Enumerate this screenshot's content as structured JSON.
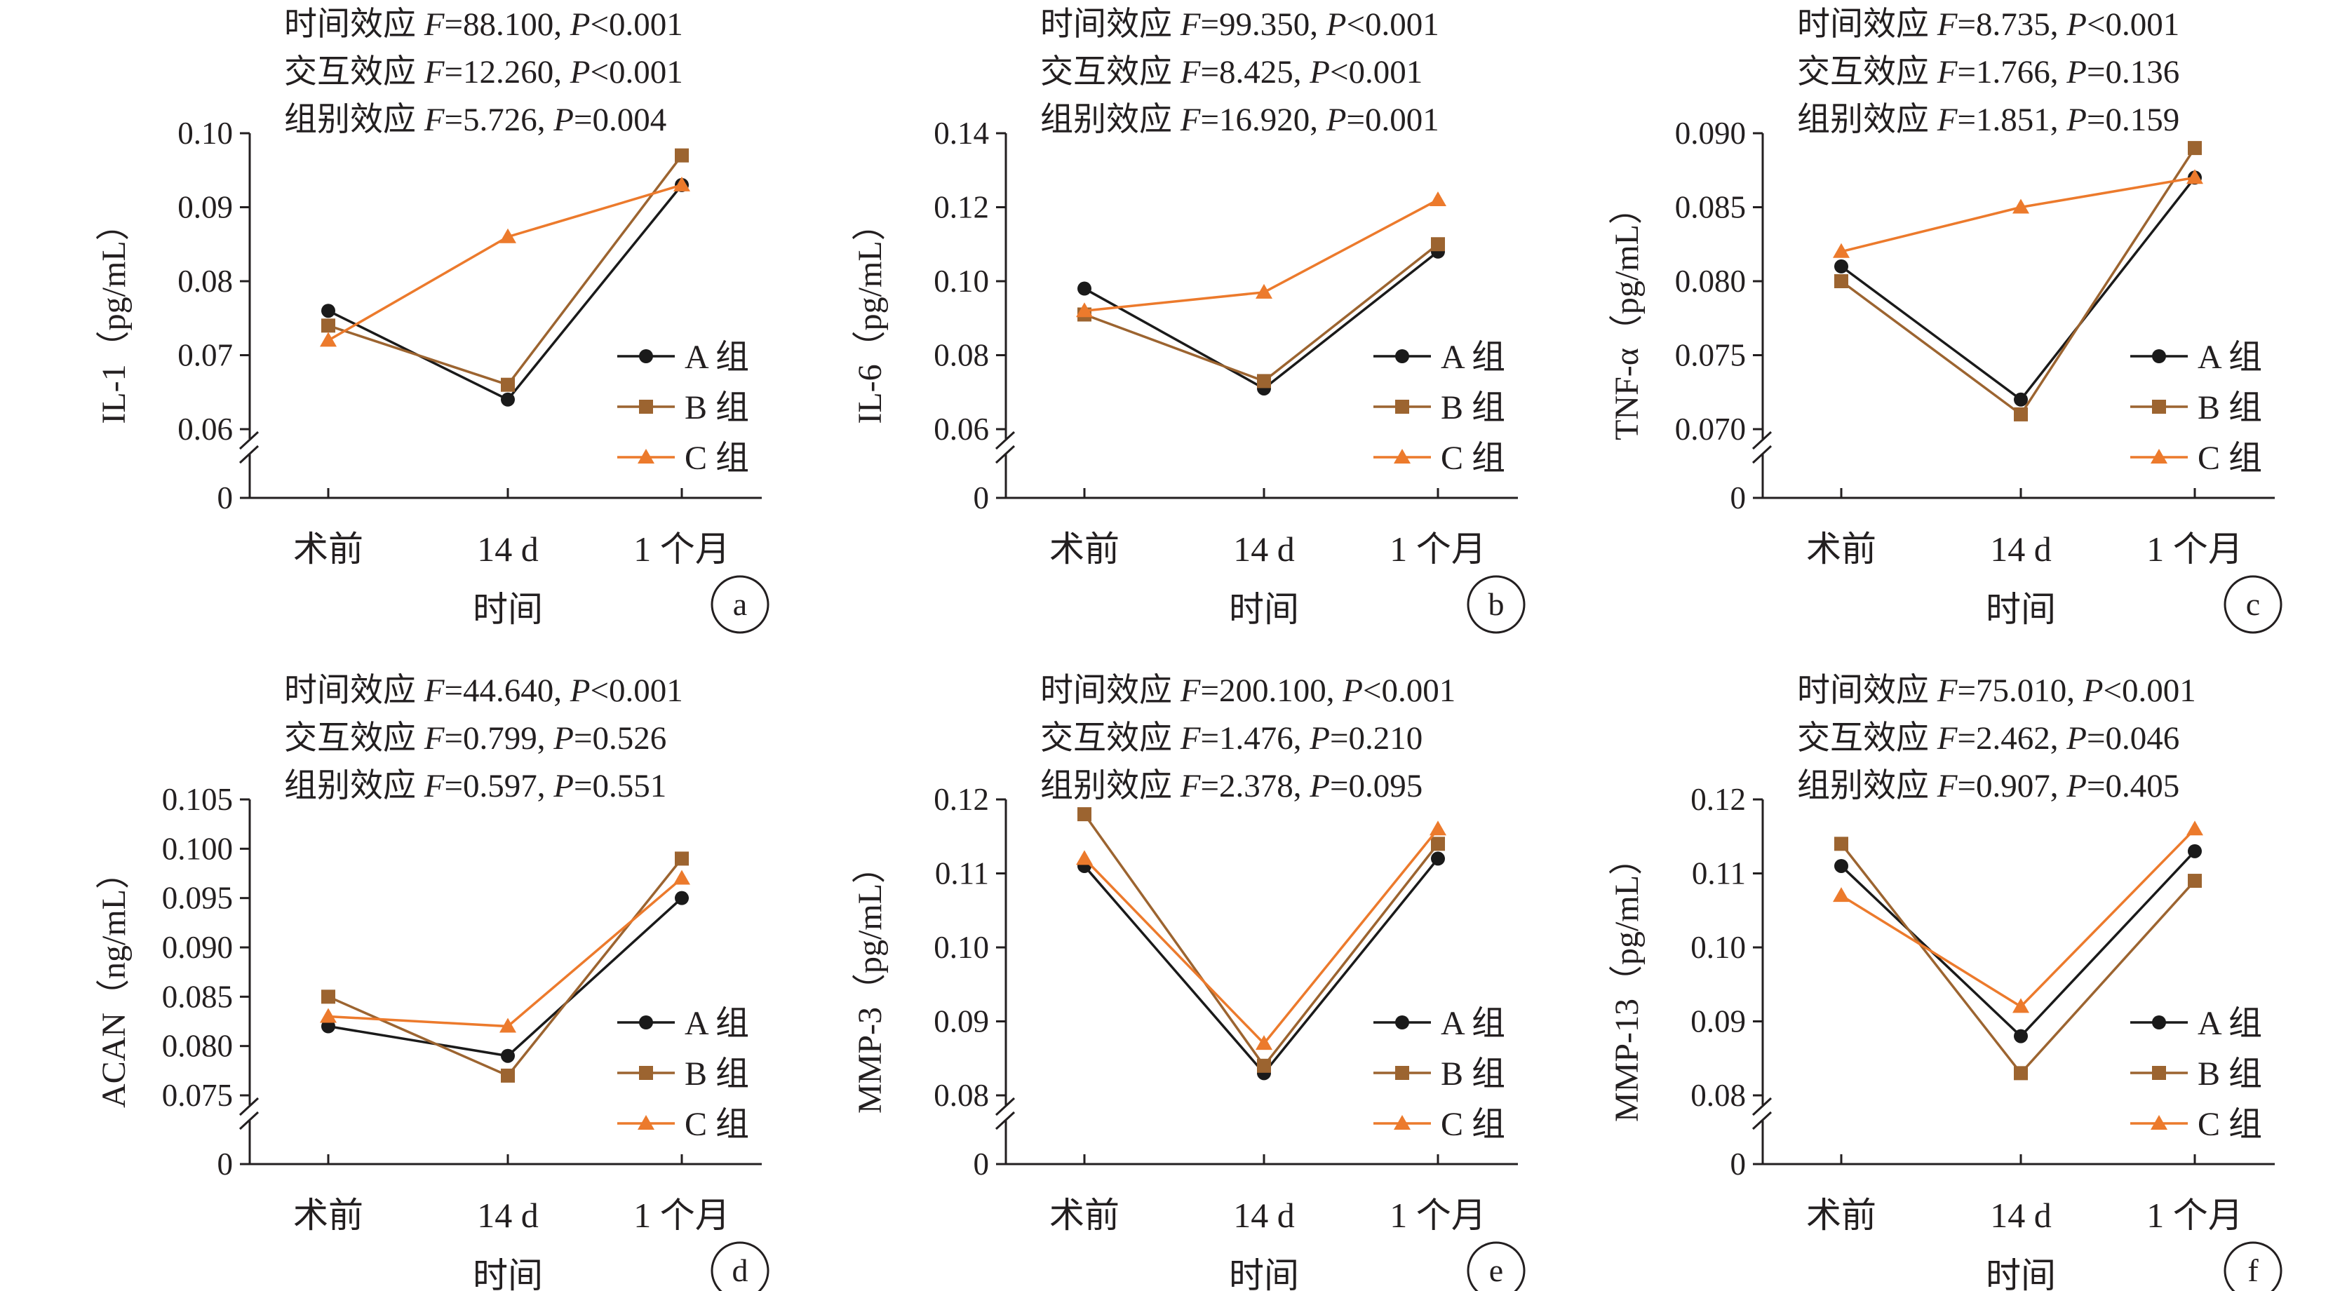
{
  "colors": {
    "A": "#1a1a1a",
    "B": "#9c6430",
    "C": "#ec7a2c",
    "axis": "#231f20"
  },
  "chart_data": [
    {
      "type": "line",
      "panel": "a",
      "stats": [
        {
          "label": "时间效应 ",
          "F": "88.100",
          "P": "<0.001"
        },
        {
          "label": "交互效应 ",
          "F": "12.260",
          "P": "<0.001"
        },
        {
          "label": "组别效应 ",
          "F": "5.726",
          "P": "=0.004"
        }
      ],
      "ylabel": "IL-1（pg/mL）",
      "xlabel": "时间",
      "categories": [
        "术前",
        "14 d",
        "1 个月"
      ],
      "ylim": [
        0.06,
        0.1
      ],
      "break_baseline": "0",
      "yticks": [
        "0.06",
        "0.07",
        "0.08",
        "0.09",
        "0.10"
      ],
      "series": [
        {
          "name": "A 组",
          "values": [
            0.076,
            0.064,
            0.093
          ]
        },
        {
          "name": "B 组",
          "values": [
            0.074,
            0.066,
            0.097
          ]
        },
        {
          "name": "C 组",
          "values": [
            0.072,
            0.086,
            0.093
          ]
        }
      ]
    },
    {
      "type": "line",
      "panel": "b",
      "stats": [
        {
          "label": "时间效应 ",
          "F": "99.350",
          "P": "<0.001"
        },
        {
          "label": "交互效应 ",
          "F": "8.425",
          "P": "<0.001"
        },
        {
          "label": "组别效应 ",
          "F": "16.920",
          "P": "=0.001"
        }
      ],
      "ylabel": "IL-6（pg/mL）",
      "xlabel": "时间",
      "categories": [
        "术前",
        "14 d",
        "1 个月"
      ],
      "ylim": [
        0.06,
        0.14
      ],
      "break_baseline": "0",
      "yticks": [
        "0.06",
        "0.08",
        "0.10",
        "0.12",
        "0.14"
      ],
      "series": [
        {
          "name": "A 组",
          "values": [
            0.098,
            0.071,
            0.108
          ]
        },
        {
          "name": "B 组",
          "values": [
            0.091,
            0.073,
            0.11
          ]
        },
        {
          "name": "C 组",
          "values": [
            0.092,
            0.097,
            0.122
          ]
        }
      ]
    },
    {
      "type": "line",
      "panel": "c",
      "stats": [
        {
          "label": "时间效应 ",
          "F": "8.735",
          "P": "<0.001"
        },
        {
          "label": "交互效应 ",
          "F": "1.766",
          "P": "=0.136"
        },
        {
          "label": "组别效应 ",
          "F": "1.851",
          "P": "=0.159"
        }
      ],
      "ylabel": "TNF-α（pg/mL）",
      "xlabel": "时间",
      "categories": [
        "术前",
        "14 d",
        "1 个月"
      ],
      "ylim": [
        0.07,
        0.09
      ],
      "break_baseline": "0",
      "yticks": [
        "0.070",
        "0.075",
        "0.080",
        "0.085",
        "0.090"
      ],
      "series": [
        {
          "name": "A 组",
          "values": [
            0.081,
            0.072,
            0.087
          ]
        },
        {
          "name": "B 组",
          "values": [
            0.08,
            0.071,
            0.089
          ]
        },
        {
          "name": "C 组",
          "values": [
            0.082,
            0.085,
            0.087
          ]
        }
      ]
    },
    {
      "type": "line",
      "panel": "d",
      "stats": [
        {
          "label": "时间效应 ",
          "F": "44.640",
          "P": "<0.001"
        },
        {
          "label": "交互效应 ",
          "F": "0.799",
          "P": "=0.526"
        },
        {
          "label": "组别效应 ",
          "F": "0.597",
          "P": "=0.551"
        }
      ],
      "ylabel": "ACAN（ng/mL）",
      "xlabel": "时间",
      "categories": [
        "术前",
        "14 d",
        "1 个月"
      ],
      "ylim": [
        0.075,
        0.105
      ],
      "break_baseline": "0",
      "yticks": [
        "0.075",
        "0.080",
        "0.085",
        "0.090",
        "0.095",
        "0.100",
        "0.105"
      ],
      "series": [
        {
          "name": "A 组",
          "values": [
            0.082,
            0.079,
            0.095
          ]
        },
        {
          "name": "B 组",
          "values": [
            0.085,
            0.077,
            0.099
          ]
        },
        {
          "name": "C 组",
          "values": [
            0.083,
            0.082,
            0.097
          ]
        }
      ]
    },
    {
      "type": "line",
      "panel": "e",
      "stats": [
        {
          "label": "时间效应 ",
          "F": "200.100",
          "P": "<0.001"
        },
        {
          "label": "交互效应 ",
          "F": "1.476",
          "P": "=0.210"
        },
        {
          "label": "组别效应 ",
          "F": "2.378",
          "P": "=0.095"
        }
      ],
      "ylabel": "MMP-3（pg/mL）",
      "xlabel": "时间",
      "categories": [
        "术前",
        "14 d",
        "1 个月"
      ],
      "ylim": [
        0.08,
        0.12
      ],
      "break_baseline": "0",
      "yticks": [
        "0.08",
        "0.09",
        "0.10",
        "0.11",
        "0.12"
      ],
      "series": [
        {
          "name": "A 组",
          "values": [
            0.111,
            0.083,
            0.112
          ]
        },
        {
          "name": "B 组",
          "values": [
            0.118,
            0.084,
            0.114
          ]
        },
        {
          "name": "C 组",
          "values": [
            0.112,
            0.087,
            0.116
          ]
        }
      ]
    },
    {
      "type": "line",
      "panel": "f",
      "stats": [
        {
          "label": "时间效应 ",
          "F": "75.010",
          "P": "<0.001"
        },
        {
          "label": "交互效应 ",
          "F": "2.462",
          "P": "=0.046"
        },
        {
          "label": "组别效应 ",
          "F": "0.907",
          "P": "=0.405"
        }
      ],
      "ylabel": "MMP-13（pg/mL）",
      "xlabel": "时间",
      "categories": [
        "术前",
        "14 d",
        "1 个月"
      ],
      "ylim": [
        0.08,
        0.12
      ],
      "break_baseline": "0",
      "yticks": [
        "0.08",
        "0.09",
        "0.10",
        "0.11",
        "0.12"
      ],
      "series": [
        {
          "name": "A 组",
          "values": [
            0.111,
            0.088,
            0.113
          ]
        },
        {
          "name": "B 组",
          "values": [
            0.114,
            0.083,
            0.109
          ]
        },
        {
          "name": "C 组",
          "values": [
            0.107,
            0.092,
            0.116
          ]
        }
      ]
    }
  ]
}
